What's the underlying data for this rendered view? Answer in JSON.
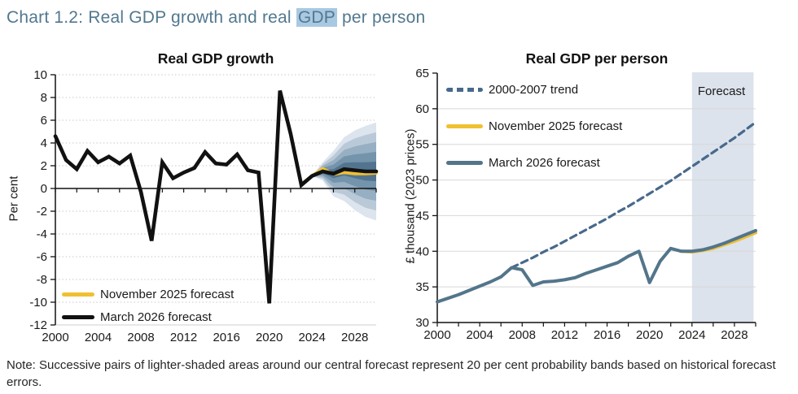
{
  "page": {
    "title": {
      "prefix": "Chart 1.2: Real GDP growth and real ",
      "highlight": "GDP",
      "suffix": " per person"
    },
    "note": "Note: Successive pairs of lighter-shaded areas around our central forecast represent 20 per cent probability bands based on historical forecast errors.",
    "colors": {
      "title_text": "#52788f",
      "title_highlight_bg": "#a9c9e2",
      "axis_text": "#1a1a1a",
      "forecast_band": "#dce3ec",
      "yellow_line": "#f0c033",
      "black_line": "#111111",
      "slate_line": "#53758a",
      "trend_line": "#47698b"
    }
  },
  "chart_data": [
    {
      "type": "line",
      "title": "Real GDP growth",
      "ylabel": "Per cent",
      "ylim": [
        -12,
        10
      ],
      "y_ticks": [
        10,
        8,
        6,
        4,
        2,
        0,
        -2,
        -4,
        -6,
        -8,
        -10,
        -12
      ],
      "x_range": [
        2000,
        2030
      ],
      "x_tick_labels": [
        "2000",
        "2004",
        "2008",
        "2012",
        "2016",
        "2020",
        "2024",
        "2028"
      ],
      "x_minor_tick_step": 2,
      "grid": "dotted",
      "legend_position": "bottom-left",
      "legend": [
        {
          "label": "November 2025 forecast",
          "color": "#f0c033",
          "dashed": false
        },
        {
          "label": "March 2026 forecast",
          "color": "#111111",
          "dashed": false
        }
      ],
      "series": [
        {
          "name": "November 2025 forecast",
          "color": "#f0c033",
          "dashed": false,
          "x_start": 2023,
          "values": [
            0.4,
            1.1,
            1.75,
            1.25,
            1.4,
            1.3,
            1.3,
            1.35
          ]
        },
        {
          "name": "March 2026 forecast",
          "color": "#111111",
          "dashed": false,
          "x_start": 2000,
          "values": [
            4.6,
            2.5,
            1.7,
            3.3,
            2.3,
            2.8,
            2.2,
            2.9,
            -0.3,
            -4.6,
            2.3,
            0.9,
            1.4,
            1.8,
            3.2,
            2.2,
            2.1,
            3.0,
            1.6,
            1.4,
            -10.1,
            8.6,
            4.8,
            0.3,
            1.1,
            1.5,
            1.3,
            1.7,
            1.6,
            1.5,
            1.5
          ]
        }
      ],
      "fan": {
        "x_start": 2024,
        "center": [
          1.1,
          1.5,
          1.3,
          1.7,
          1.6,
          1.5,
          1.5
        ],
        "outer_halfwidth": [
          0,
          0.8,
          2.0,
          2.8,
          3.5,
          4.0,
          4.3
        ],
        "bands": [
          {
            "fraction": 1.0,
            "color": "#dce4ee"
          },
          {
            "fraction": 0.8,
            "color": "#bac9d8"
          },
          {
            "fraction": 0.6,
            "color": "#97afc3"
          },
          {
            "fraction": 0.4,
            "color": "#7494ab"
          },
          {
            "fraction": 0.2,
            "color": "#53748f"
          }
        ]
      }
    },
    {
      "type": "line",
      "title": "Real GDP per person",
      "ylabel": "£ thousand (2023 prices)",
      "ylim": [
        30,
        65
      ],
      "y_ticks": [
        65,
        60,
        55,
        50,
        45,
        40,
        35,
        30
      ],
      "x_range": [
        2000,
        2030
      ],
      "x_tick_labels": [
        "2000",
        "2004",
        "2008",
        "2012",
        "2016",
        "2020",
        "2024",
        "2028"
      ],
      "x_minor_tick_step": 2,
      "grid": "solid",
      "legend_position": "top-left",
      "forecast_region": {
        "label": "Forecast",
        "x_start": 2024,
        "x_end": 2029.8
      },
      "legend": [
        {
          "label": "2000-2007 trend",
          "color": "#47698b",
          "dashed": true
        },
        {
          "label": "November 2025 forecast",
          "color": "#f0c033",
          "dashed": false
        },
        {
          "label": "March 2026 forecast",
          "color": "#53758a",
          "dashed": false
        }
      ],
      "series": [
        {
          "name": "2000-2007 trend",
          "color": "#47698b",
          "dashed": true,
          "x_start": 2007,
          "values": [
            37.7,
            38.4,
            39.1,
            39.9,
            40.6,
            41.4,
            42.2,
            43.0,
            43.8,
            44.6,
            45.5,
            46.3,
            47.2,
            48.1,
            49.0,
            49.9,
            50.9,
            51.9,
            52.9,
            53.9,
            54.9,
            55.9,
            57.0,
            58.1
          ]
        },
        {
          "name": "November 2025 forecast",
          "color": "#f0c033",
          "dashed": false,
          "x_start": 2023,
          "values": [
            40.0,
            39.9,
            40.1,
            40.4,
            40.9,
            41.4,
            42.0,
            42.6
          ]
        },
        {
          "name": "March 2026 forecast",
          "color": "#53758a",
          "dashed": false,
          "x_start": 2000,
          "values": [
            32.9,
            33.4,
            33.9,
            34.5,
            35.1,
            35.7,
            36.4,
            37.7,
            37.4,
            35.2,
            35.7,
            35.8,
            36.0,
            36.3,
            36.9,
            37.4,
            37.9,
            38.4,
            39.3,
            40.0,
            35.6,
            38.6,
            40.4,
            40.0,
            40.0,
            40.2,
            40.6,
            41.1,
            41.7,
            42.3,
            42.9
          ]
        }
      ]
    }
  ]
}
